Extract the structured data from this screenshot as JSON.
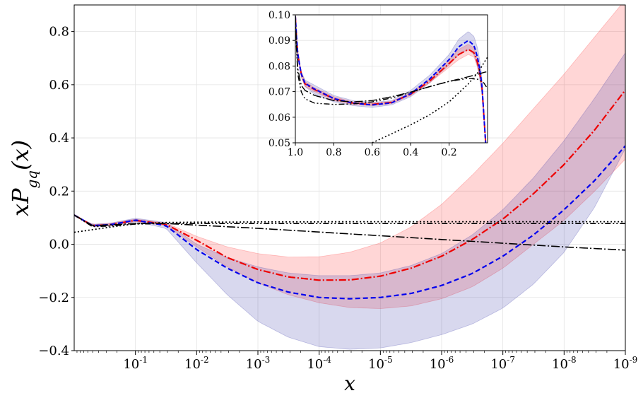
{
  "chart_data": [
    {
      "id": "main",
      "type": "line",
      "xlabel": "x",
      "ylabel": "xP",
      "ylabel_sub": "gq",
      "ylabel_arg": "(x)",
      "x_scale": "log-reversed",
      "xlim_log10": [
        0,
        -9
      ],
      "ylim": [
        -0.4,
        0.9
      ],
      "grid": true,
      "y_ticks": [
        {
          "value": -0.4,
          "label": "−0.4"
        },
        {
          "value": -0.2,
          "label": "−0.2"
        },
        {
          "value": 0.0,
          "label": "0.0"
        },
        {
          "value": 0.2,
          "label": "0.2"
        },
        {
          "value": 0.4,
          "label": "0.4"
        },
        {
          "value": 0.6,
          "label": "0.6"
        },
        {
          "value": 0.8,
          "label": "0.8"
        }
      ],
      "x_ticks": [
        {
          "log10": -1,
          "base": "10",
          "exp": "-1"
        },
        {
          "log10": -2,
          "base": "10",
          "exp": "-2"
        },
        {
          "log10": -3,
          "base": "10",
          "exp": "-3"
        },
        {
          "log10": -4,
          "base": "10",
          "exp": "-4"
        },
        {
          "log10": -5,
          "base": "10",
          "exp": "-5"
        },
        {
          "log10": -6,
          "base": "10",
          "exp": "-6"
        },
        {
          "log10": -7,
          "base": "10",
          "exp": "-7"
        },
        {
          "log10": -8,
          "base": "10",
          "exp": "-8"
        },
        {
          "log10": -9,
          "base": "10",
          "exp": "-9"
        }
      ],
      "series": [
        {
          "name": "red-band",
          "kind": "band",
          "color": "#ff0000",
          "opacity": 0.16,
          "x_log10": [
            0,
            -0.3,
            -0.6,
            -1.0,
            -1.5,
            -2.0,
            -2.5,
            -3.0,
            -3.5,
            -4.0,
            -4.5,
            -5.0,
            -5.5,
            -6.0,
            -6.5,
            -7.0,
            -7.5,
            -8.0,
            -8.5,
            -9.0
          ],
          "lower": [
            0.11,
            0.066,
            0.07,
            0.085,
            0.07,
            -0.01,
            -0.085,
            -0.145,
            -0.19,
            -0.22,
            -0.238,
            -0.242,
            -0.232,
            -0.205,
            -0.16,
            -0.09,
            0.0,
            0.09,
            0.2,
            0.32
          ],
          "upper": [
            0.11,
            0.075,
            0.079,
            0.095,
            0.08,
            0.03,
            -0.01,
            -0.035,
            -0.048,
            -0.047,
            -0.03,
            0.005,
            0.065,
            0.15,
            0.26,
            0.38,
            0.51,
            0.64,
            0.78,
            0.92
          ]
        },
        {
          "name": "blue-band",
          "kind": "band",
          "color": "#3a3aa8",
          "opacity": 0.2,
          "x_log10": [
            0,
            -0.3,
            -0.6,
            -1.0,
            -1.5,
            -2.0,
            -2.5,
            -3.0,
            -3.5,
            -4.0,
            -4.5,
            -5.0,
            -5.5,
            -6.0,
            -6.5,
            -7.0,
            -7.5,
            -8.0,
            -8.5,
            -9.0
          ],
          "lower": [
            0.11,
            0.066,
            0.07,
            0.085,
            0.06,
            -0.07,
            -0.19,
            -0.29,
            -0.35,
            -0.385,
            -0.395,
            -0.39,
            -0.37,
            -0.34,
            -0.3,
            -0.24,
            -0.15,
            -0.03,
            0.14,
            0.36
          ],
          "upper": [
            0.11,
            0.075,
            0.08,
            0.098,
            0.082,
            0.0,
            -0.05,
            -0.085,
            -0.108,
            -0.118,
            -0.118,
            -0.108,
            -0.08,
            -0.035,
            0.035,
            0.13,
            0.25,
            0.39,
            0.55,
            0.72
          ]
        },
        {
          "name": "red-central",
          "kind": "line",
          "color": "#ee0000",
          "dash": "10 3 2 3",
          "width": 2.2,
          "x_log10": [
            0,
            -0.3,
            -0.6,
            -1.0,
            -1.5,
            -2.0,
            -2.5,
            -3.0,
            -3.5,
            -4.0,
            -4.5,
            -5.0,
            -5.5,
            -6.0,
            -6.5,
            -7.0,
            -7.5,
            -8.0,
            -8.5,
            -9.0
          ],
          "y": [
            0.11,
            0.07,
            0.074,
            0.09,
            0.075,
            0.015,
            -0.05,
            -0.095,
            -0.123,
            -0.135,
            -0.134,
            -0.12,
            -0.09,
            -0.045,
            0.018,
            0.095,
            0.19,
            0.3,
            0.43,
            0.58
          ]
        },
        {
          "name": "blue-central",
          "kind": "line",
          "color": "#0000ee",
          "dash": "7 4",
          "width": 2.2,
          "x_log10": [
            0,
            -0.3,
            -0.6,
            -1.0,
            -1.5,
            -2.0,
            -2.5,
            -3.0,
            -3.5,
            -4.0,
            -4.5,
            -5.0,
            -5.5,
            -6.0,
            -6.5,
            -7.0,
            -7.5,
            -8.0,
            -8.5,
            -9.0
          ],
          "y": [
            0.11,
            0.07,
            0.074,
            0.091,
            0.07,
            -0.02,
            -0.09,
            -0.145,
            -0.18,
            -0.2,
            -0.205,
            -0.2,
            -0.185,
            -0.155,
            -0.11,
            -0.045,
            0.035,
            0.13,
            0.24,
            0.37
          ]
        },
        {
          "name": "black-dashdot",
          "kind": "line",
          "color": "#000000",
          "dash": "12 3 2 3",
          "width": 1.6,
          "x_log10": [
            0,
            -0.3,
            -0.6,
            -1.0,
            -1.5,
            -2.0,
            -3.0,
            -4.0,
            -5.0,
            -6.0,
            -7.0,
            -8.0,
            -9.0
          ],
          "y": [
            0.11,
            0.07,
            0.073,
            0.078,
            0.078,
            0.072,
            0.06,
            0.046,
            0.032,
            0.018,
            0.004,
            -0.01,
            -0.022
          ]
        },
        {
          "name": "black-dotted",
          "kind": "line",
          "color": "#000000",
          "dash": "2 3",
          "width": 1.8,
          "x_log10": [
            0,
            -0.3,
            -0.6,
            -1.0,
            -1.5,
            -2.0,
            -3.0,
            -5.0,
            -7.0,
            -9.0
          ],
          "y": [
            0.045,
            0.055,
            0.065,
            0.077,
            0.082,
            0.083,
            0.084,
            0.085,
            0.085,
            0.085
          ]
        },
        {
          "name": "black-dashdotdot",
          "kind": "line",
          "color": "#000000",
          "dash": "8 3 2 3 2 3",
          "width": 1.6,
          "x_log10": [
            0,
            -0.3,
            -0.6,
            -1.0,
            -1.5,
            -2.0,
            -3.0,
            -5.0,
            -7.0,
            -9.0
          ],
          "y": [
            0.11,
            0.066,
            0.069,
            0.076,
            0.078,
            0.078,
            0.078,
            0.078,
            0.078,
            0.078
          ]
        }
      ]
    },
    {
      "id": "inset",
      "type": "line",
      "x_scale": "linear-reversed",
      "xlim": [
        1.0,
        0.0
      ],
      "ylim": [
        0.05,
        0.1
      ],
      "grid": true,
      "x_ticks": [
        {
          "value": 1.0,
          "label": "1.0"
        },
        {
          "value": 0.8,
          "label": "0.8"
        },
        {
          "value": 0.6,
          "label": "0.6"
        },
        {
          "value": 0.4,
          "label": "0.4"
        },
        {
          "value": 0.2,
          "label": "0.2"
        }
      ],
      "y_ticks": [
        {
          "value": 0.05,
          "label": "0.05"
        },
        {
          "value": 0.06,
          "label": "0.06"
        },
        {
          "value": 0.07,
          "label": "0.07"
        },
        {
          "value": 0.08,
          "label": "0.08"
        },
        {
          "value": 0.09,
          "label": "0.09"
        },
        {
          "value": 0.1,
          "label": "0.10"
        }
      ],
      "series": [
        {
          "name": "inset-blue-band",
          "kind": "band",
          "color": "#3a3aa8",
          "opacity": 0.2,
          "x": [
            1.0,
            0.99,
            0.97,
            0.95,
            0.9,
            0.8,
            0.7,
            0.6,
            0.5,
            0.4,
            0.3,
            0.2,
            0.15,
            0.1,
            0.07,
            0.05,
            0.03,
            0.01
          ],
          "lower": [
            0.099,
            0.085,
            0.076,
            0.072,
            0.069,
            0.066,
            0.0645,
            0.0638,
            0.0648,
            0.068,
            0.0735,
            0.0805,
            0.0845,
            0.0865,
            0.0845,
            0.079,
            0.07,
            0.05
          ],
          "upper": [
            0.1,
            0.087,
            0.078,
            0.0745,
            0.0725,
            0.0685,
            0.0665,
            0.0658,
            0.0665,
            0.0705,
            0.0765,
            0.0845,
            0.0905,
            0.0935,
            0.0915,
            0.0865,
            0.077,
            0.05
          ]
        },
        {
          "name": "inset-red-band",
          "kind": "band",
          "color": "#ff0000",
          "opacity": 0.16,
          "x": [
            1.0,
            0.99,
            0.97,
            0.95,
            0.9,
            0.8,
            0.7,
            0.6,
            0.5,
            0.4,
            0.3,
            0.2,
            0.15,
            0.1,
            0.07,
            0.05,
            0.03,
            0.01
          ],
          "lower": [
            0.099,
            0.085,
            0.076,
            0.072,
            0.07,
            0.0665,
            0.065,
            0.0645,
            0.0653,
            0.0685,
            0.0735,
            0.0795,
            0.0825,
            0.0845,
            0.0835,
            0.079,
            0.071,
            0.05
          ],
          "upper": [
            0.1,
            0.087,
            0.078,
            0.074,
            0.0715,
            0.068,
            0.066,
            0.0655,
            0.0662,
            0.0695,
            0.075,
            0.0825,
            0.0865,
            0.0885,
            0.087,
            0.0825,
            0.075,
            0.05
          ]
        },
        {
          "name": "inset-red-central",
          "kind": "line",
          "color": "#ee0000",
          "dash": "10 3 2 3",
          "width": 2,
          "x": [
            1.0,
            0.99,
            0.97,
            0.95,
            0.9,
            0.8,
            0.7,
            0.6,
            0.5,
            0.4,
            0.3,
            0.2,
            0.15,
            0.1,
            0.07,
            0.05,
            0.03,
            0.01
          ],
          "y": [
            0.0995,
            0.086,
            0.077,
            0.073,
            0.0708,
            0.0672,
            0.0655,
            0.065,
            0.0658,
            0.069,
            0.0742,
            0.081,
            0.0845,
            0.0865,
            0.0852,
            0.0808,
            0.073,
            0.05
          ]
        },
        {
          "name": "inset-blue-central",
          "kind": "line",
          "color": "#0000ee",
          "dash": "6 3",
          "width": 2,
          "x": [
            1.0,
            0.99,
            0.97,
            0.95,
            0.9,
            0.8,
            0.7,
            0.6,
            0.5,
            0.4,
            0.3,
            0.2,
            0.15,
            0.1,
            0.07,
            0.05,
            0.03,
            0.01
          ],
          "y": [
            0.0995,
            0.086,
            0.077,
            0.0733,
            0.071,
            0.0673,
            0.0655,
            0.0648,
            0.0656,
            0.0692,
            0.075,
            0.0825,
            0.0875,
            0.09,
            0.088,
            0.0828,
            0.0735,
            0.05
          ]
        },
        {
          "name": "inset-black-dashdot",
          "kind": "line",
          "color": "#000000",
          "dash": "12 3 2 3",
          "width": 1.4,
          "x": [
            1.0,
            0.99,
            0.97,
            0.95,
            0.9,
            0.8,
            0.7,
            0.6,
            0.5,
            0.4,
            0.3,
            0.2,
            0.1,
            0.05,
            0.02,
            0.0
          ],
          "y": [
            0.0995,
            0.08,
            0.0725,
            0.0705,
            0.0685,
            0.0665,
            0.066,
            0.0665,
            0.068,
            0.0698,
            0.072,
            0.074,
            0.0758,
            0.0768,
            0.0775,
            0.0778
          ]
        },
        {
          "name": "inset-black-dotted",
          "kind": "line",
          "color": "#000000",
          "dash": "2 3",
          "width": 1.6,
          "x": [
            0.6,
            0.5,
            0.4,
            0.3,
            0.2,
            0.1,
            0.05,
            0.0
          ],
          "y": [
            0.05,
            0.0535,
            0.057,
            0.061,
            0.066,
            0.073,
            0.0775,
            0.0835
          ]
        },
        {
          "name": "inset-black-dashdotdot",
          "kind": "line",
          "color": "#000000",
          "dash": "8 3 2 3 2 3",
          "width": 1.4,
          "x": [
            1.0,
            0.99,
            0.97,
            0.95,
            0.9,
            0.8,
            0.7,
            0.6,
            0.5,
            0.4,
            0.3,
            0.2,
            0.1,
            0.05,
            0.02,
            0.0
          ],
          "y": [
            0.0995,
            0.078,
            0.07,
            0.0672,
            0.0655,
            0.065,
            0.0652,
            0.066,
            0.0675,
            0.0697,
            0.072,
            0.074,
            0.0752,
            0.0748,
            0.0735,
            0.0712
          ]
        }
      ]
    }
  ]
}
